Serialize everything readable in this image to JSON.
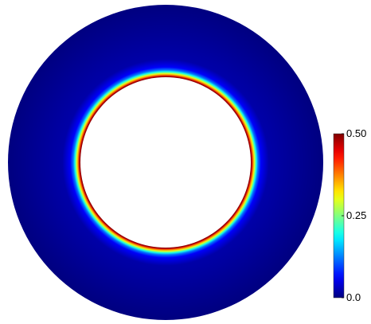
{
  "chart_data": {
    "type": "heatmap",
    "geometry": "annulus",
    "colormap": "jet",
    "colorbar": {
      "min": 0.0,
      "max": 0.5,
      "ticks": [
        {
          "value": 0.5,
          "label": "0.50"
        },
        {
          "value": 0.25,
          "label": "0.25"
        },
        {
          "value": 0.0,
          "label": "0.0"
        }
      ],
      "orientation": "vertical",
      "placement": "right"
    },
    "radial_profile": [
      {
        "r_norm": 0.0,
        "value": 0.5
      },
      {
        "r_norm": 0.015,
        "value": 0.47
      },
      {
        "r_norm": 0.03,
        "value": 0.38
      },
      {
        "r_norm": 0.05,
        "value": 0.3
      },
      {
        "r_norm": 0.075,
        "value": 0.2
      },
      {
        "r_norm": 0.1,
        "value": 0.12
      },
      {
        "r_norm": 0.14,
        "value": 0.06
      },
      {
        "r_norm": 0.25,
        "value": 0.02
      },
      {
        "r_norm": 1.0,
        "value": 0.0
      }
    ],
    "inner_hole_color": "#ffffff",
    "background_color": "#ffffff"
  }
}
